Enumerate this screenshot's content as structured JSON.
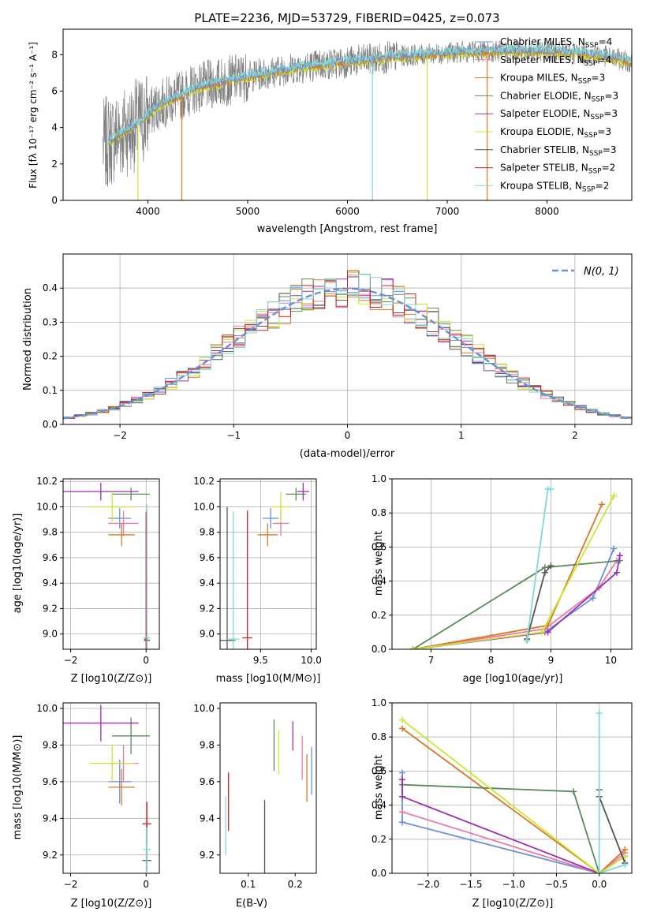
{
  "figure": {
    "title": "PLATE=2236, MJD=53729, FIBERID=0425, z=0.073",
    "colors": {
      "gray": "#808080",
      "darkgray": "#555555",
      "chabrier_miles": "#6a8fd8",
      "salpeter_miles": "#e879a8",
      "kroupa_miles": "#d8792a",
      "chabrier_elodie": "#5a8a5a",
      "salpeter_elodie": "#9a30b0",
      "kroupa_elodie": "#c8e830",
      "chabrier_stelib": "#555555",
      "salpeter_stelib": "#cc2020",
      "kroupa_stelib": "#80d8d8"
    }
  },
  "chart_data": [
    {
      "id": "spectrum",
      "type": "line",
      "title": "PLATE=2236, MJD=53729, FIBERID=0425, z=0.073",
      "xlabel": "wavelength [Angstrom, rest frame]",
      "ylabel": "Flux [fλ 10⁻¹⁷ erg cm⁻² s⁻¹ A⁻¹]",
      "xlim": [
        3150,
        8850
      ],
      "ylim": [
        0,
        9.4
      ],
      "xticks": [
        4000,
        5000,
        6000,
        7000,
        8000
      ],
      "yticks": [
        0,
        2,
        4,
        6,
        8
      ],
      "grid": false,
      "legend_position": "right",
      "data_envelope": {
        "x": [
          3550,
          3700,
          3900,
          4100,
          4500,
          5000,
          5500,
          6000,
          6500,
          7000,
          7500,
          8000,
          8500,
          8850
        ],
        "y": [
          3.0,
          3.6,
          4.2,
          5.2,
          6.2,
          6.8,
          7.3,
          7.6,
          7.9,
          8.1,
          8.2,
          8.2,
          8.0,
          7.6
        ]
      },
      "spikes": [
        {
          "x": 3900,
          "y": 0
        },
        {
          "x": 4340,
          "y": 0
        },
        {
          "x": 6250,
          "y": 0
        },
        {
          "x": 6800,
          "y": 0
        },
        {
          "x": 7400,
          "y": 0
        }
      ],
      "legend": [
        {
          "label": "Chabrier MILES, N",
          "sub": "SSP",
          "eq": "=4"
        },
        {
          "label": "Salpeter MILES, N",
          "sub": "SSP",
          "eq": "=4"
        },
        {
          "label": "Kroupa MILES, N",
          "sub": "SSP",
          "eq": "=3"
        },
        {
          "label": "Chabrier ELODIE, N",
          "sub": "SSP",
          "eq": "=3"
        },
        {
          "label": "Salpeter ELODIE, N",
          "sub": "SSP",
          "eq": "=3"
        },
        {
          "label": "Kroupa ELODIE, N",
          "sub": "SSP",
          "eq": "=3"
        },
        {
          "label": "Chabrier STELIB, N",
          "sub": "SSP",
          "eq": "=3"
        },
        {
          "label": "Salpeter STELIB, N",
          "sub": "SSP",
          "eq": "=2"
        },
        {
          "label": "Kroupa STELIB, N",
          "sub": "SSP",
          "eq": "=2"
        }
      ]
    },
    {
      "id": "residuals",
      "type": "line",
      "xlabel": "(data-model)/error",
      "ylabel": "Normed distribution",
      "xlim": [
        -2.5,
        2.5
      ],
      "ylim": [
        0,
        0.5
      ],
      "xticks": [
        -2,
        -1,
        0,
        1,
        2
      ],
      "xtick_labels": [
        "−2",
        "−1",
        "0",
        "1",
        "2"
      ],
      "yticks": [
        0,
        0.1,
        0.2,
        0.3,
        0.4
      ],
      "ytick_labels": [
        "0.0",
        "0.1",
        "0.2",
        "0.3",
        "0.4"
      ],
      "grid": true,
      "legend_position": "top-right",
      "legend_label": "N(0, 1)",
      "gaussian": {
        "mean": 0,
        "sigma": 1
      }
    },
    {
      "id": "age_vs_z",
      "type": "scatter",
      "xlabel": "Z [log10(Z/Z⊙)]",
      "ylabel": "age  [log10(age/yr)]",
      "xlim": [
        -2.2,
        0.35
      ],
      "ylim": [
        8.88,
        10.22
      ],
      "xticks": [
        -2,
        0
      ],
      "xtick_labels": [
        "−2",
        "0"
      ],
      "yticks": [
        9.0,
        9.2,
        9.4,
        9.6,
        9.8,
        10.0,
        10.2
      ],
      "ytick_labels": [
        "9.0",
        "9.2",
        "9.4",
        "9.6",
        "9.8",
        "10.0",
        "10.2"
      ],
      "grid": true,
      "points": [
        {
          "series": "Chabrier MILES",
          "x": -0.7,
          "xerr": 0.3,
          "y": 9.91,
          "yerr": 0.08
        },
        {
          "series": "Salpeter MILES",
          "x": -0.6,
          "xerr": 0.4,
          "y": 9.87,
          "yerr": 0.1
        },
        {
          "series": "Kroupa MILES",
          "x": -0.65,
          "xerr": 0.35,
          "y": 9.78,
          "yerr": 0.09
        },
        {
          "series": "Chabrier ELODIE",
          "x": -0.4,
          "xerr": 0.5,
          "y": 10.1,
          "yerr": 0.05
        },
        {
          "series": "Salpeter ELODIE",
          "x": -1.2,
          "xerr": 1.0,
          "y": 10.12,
          "yerr": 0.07
        },
        {
          "series": "Kroupa ELODIE",
          "x": -0.9,
          "xerr": 0.6,
          "y": 10.0,
          "yerr": 0.12
        },
        {
          "series": "Chabrier STELIB",
          "x": 0.02,
          "xerr": 0.08,
          "y": 8.95,
          "yerr": 0.06
        },
        {
          "series": "Salpeter STELIB",
          "x": 0.0,
          "xerr": 0.05,
          "y": 8.96,
          "yerr": 1.0
        },
        {
          "series": "Kroupa STELIB",
          "x": 0.02,
          "xerr": 0.1,
          "y": 8.97,
          "yerr": 1.05
        }
      ]
    },
    {
      "id": "age_vs_mass",
      "type": "scatter",
      "xlabel": "mass [log10(M/M⊙)]",
      "xlim": [
        9.1,
        10.05
      ],
      "ylim": [
        8.88,
        10.22
      ],
      "xticks": [
        9.5,
        10.0
      ],
      "xtick_labels": [
        "9.5",
        "10.0"
      ],
      "yticks": [
        9.0,
        9.2,
        9.4,
        9.6,
        9.8,
        10.0,
        10.2
      ],
      "ytick_labels": [
        "9.0",
        "9.2",
        "9.4",
        "9.6",
        "9.8",
        "10.0",
        "10.2"
      ],
      "grid": true,
      "points": [
        {
          "series": "Chabrier MILES",
          "x": 9.6,
          "xerr": 0.08,
          "y": 9.91,
          "yerr": 0.08
        },
        {
          "series": "Salpeter MILES",
          "x": 9.7,
          "xerr": 0.08,
          "y": 9.87,
          "yerr": 0.1
        },
        {
          "series": "Kroupa MILES",
          "x": 9.57,
          "xerr": 0.1,
          "y": 9.78,
          "yerr": 0.09
        },
        {
          "series": "Chabrier ELODIE",
          "x": 9.85,
          "xerr": 0.1,
          "y": 10.1,
          "yerr": 0.05
        },
        {
          "series": "Salpeter ELODIE",
          "x": 9.92,
          "xerr": 0.06,
          "y": 10.12,
          "yerr": 0.07
        },
        {
          "series": "Kroupa ELODIE",
          "x": 9.7,
          "xerr": 0.1,
          "y": 10.0,
          "yerr": 0.12
        },
        {
          "series": "Chabrier STELIB",
          "x": 9.17,
          "xerr": 0.08,
          "y": 8.95,
          "yerr": 1.05
        },
        {
          "series": "Salpeter STELIB",
          "x": 9.37,
          "xerr": 0.05,
          "y": 8.97,
          "yerr": 1.0
        },
        {
          "series": "Kroupa STELIB",
          "x": 9.23,
          "xerr": 0.06,
          "y": 8.96,
          "yerr": 1.0
        }
      ]
    },
    {
      "id": "massweight_vs_age",
      "type": "line",
      "xlabel": "age  [log10(age/yr)]",
      "ylabel": "mass weight",
      "xlim": [
        6.35,
        10.35
      ],
      "ylim": [
        0,
        1.0
      ],
      "xticks": [
        7,
        8,
        9,
        10
      ],
      "xtick_labels": [
        "7",
        "8",
        "9",
        "10"
      ],
      "yticks": [
        0,
        0.2,
        0.4,
        0.6,
        0.8,
        1.0
      ],
      "ytick_labels": [
        "0.0",
        "0.2",
        "0.4",
        "0.6",
        "0.8",
        "1.0"
      ],
      "grid": true,
      "series": [
        {
          "name": "Chabrier MILES",
          "x": [
            6.7,
            8.9,
            9.7,
            10.05
          ],
          "y": [
            0.0,
            0.1,
            0.3,
            0.59
          ]
        },
        {
          "name": "Salpeter MILES",
          "x": [
            6.7,
            8.9,
            9.8,
            10.1
          ],
          "y": [
            0.0,
            0.12,
            0.36,
            0.52
          ]
        },
        {
          "name": "Kroupa MILES",
          "x": [
            6.7,
            8.95,
            9.85
          ],
          "y": [
            0.0,
            0.14,
            0.85
          ]
        },
        {
          "name": "Chabrier ELODIE",
          "x": [
            6.7,
            8.9,
            10.15
          ],
          "y": [
            0.0,
            0.48,
            0.52
          ]
        },
        {
          "name": "Salpeter ELODIE",
          "x": [
            6.7,
            8.95,
            10.1,
            10.15
          ],
          "y": [
            0.0,
            0.1,
            0.45,
            0.55
          ]
        },
        {
          "name": "Kroupa ELODIE",
          "x": [
            6.7,
            8.85,
            10.05
          ],
          "y": [
            0.0,
            0.1,
            0.9
          ]
        },
        {
          "name": "Chabrier STELIB",
          "x": [
            8.6,
            8.9,
            9.0
          ],
          "y": [
            0.06,
            0.45,
            0.49
          ]
        },
        {
          "name": "Kroupa STELIB",
          "x": [
            8.6,
            8.95,
            9.0
          ],
          "y": [
            0.05,
            0.94,
            0.94
          ]
        }
      ]
    },
    {
      "id": "mass_vs_z",
      "type": "scatter",
      "xlabel": "Z [log10(Z/Z⊙)]",
      "ylabel": "mass [log10(M/M⊙)]",
      "xlim": [
        -2.2,
        0.35
      ],
      "ylim": [
        9.1,
        10.03
      ],
      "xticks": [
        -2,
        0
      ],
      "xtick_labels": [
        "−2",
        "0"
      ],
      "yticks": [
        9.2,
        9.4,
        9.6,
        9.8,
        10.0
      ],
      "ytick_labels": [
        "9.2",
        "9.4",
        "9.6",
        "9.8",
        "10.0"
      ],
      "grid": true,
      "points": [
        {
          "series": "Chabrier MILES",
          "x": -0.7,
          "xerr": 0.3,
          "y": 9.6,
          "yerr": 0.12
        },
        {
          "series": "Salpeter MILES",
          "x": -0.6,
          "xerr": 0.4,
          "y": 9.7,
          "yerr": 0.1
        },
        {
          "series": "Kroupa MILES",
          "x": -0.65,
          "xerr": 0.35,
          "y": 9.57,
          "yerr": 0.1
        },
        {
          "series": "Chabrier ELODIE",
          "x": -0.4,
          "xerr": 0.5,
          "y": 9.85,
          "yerr": 0.1
        },
        {
          "series": "Salpeter ELODIE",
          "x": -1.2,
          "xerr": 1.0,
          "y": 9.92,
          "yerr": 0.1
        },
        {
          "series": "Kroupa ELODIE",
          "x": -0.9,
          "xerr": 0.6,
          "y": 9.7,
          "yerr": 0.1
        },
        {
          "series": "Chabrier STELIB",
          "x": 0.02,
          "xerr": 0.12,
          "y": 9.17,
          "yerr": 0.06
        },
        {
          "series": "Salpeter STELIB",
          "x": 0.02,
          "xerr": 0.12,
          "y": 9.37,
          "yerr": 0.12
        },
        {
          "series": "Kroupa STELIB",
          "x": 0.02,
          "xerr": 0.1,
          "y": 9.23,
          "yerr": 0.12
        }
      ]
    },
    {
      "id": "mass_vs_ebv",
      "type": "scatter",
      "xlabel": "E(B-V)",
      "xlim": [
        0.04,
        0.245
      ],
      "ylim": [
        9.1,
        10.03
      ],
      "xticks": [
        0.1,
        0.2
      ],
      "xtick_labels": [
        "0.1",
        "0.2"
      ],
      "yticks": [
        9.2,
        9.4,
        9.6,
        9.8,
        10.0
      ],
      "ytick_labels": [
        "9.2",
        "9.4",
        "9.6",
        "9.8",
        "10.0"
      ],
      "grid": false,
      "points": [
        {
          "series": "Chabrier MILES",
          "x": 0.235,
          "y": 9.66,
          "yerr": 0.13
        },
        {
          "series": "Salpeter MILES",
          "x": 0.215,
          "y": 9.73,
          "yerr": 0.12
        },
        {
          "series": "Kroupa MILES",
          "x": 0.225,
          "y": 9.62,
          "yerr": 0.13
        },
        {
          "series": "Chabrier ELODIE",
          "x": 0.155,
          "y": 9.8,
          "yerr": 0.14
        },
        {
          "series": "Salpeter ELODIE",
          "x": 0.195,
          "y": 9.85,
          "yerr": 0.08
        },
        {
          "series": "Kroupa ELODIE",
          "x": 0.165,
          "y": 9.76,
          "yerr": 0.12
        },
        {
          "series": "Chabrier STELIB",
          "x": 0.135,
          "y": 9.26,
          "yerr": 0.24
        },
        {
          "series": "Salpeter STELIB",
          "x": 0.058,
          "y": 9.49,
          "yerr": 0.16
        },
        {
          "series": "Kroupa STELIB",
          "x": 0.052,
          "y": 9.36,
          "yerr": 0.16
        }
      ]
    },
    {
      "id": "massweight_vs_z",
      "type": "line",
      "xlabel": "Z [log10(Z/Z⊙)]",
      "ylabel": "mass weight",
      "xlim": [
        -2.42,
        0.38
      ],
      "ylim": [
        0,
        1.0
      ],
      "xticks": [
        -2.0,
        -1.5,
        -1.0,
        -0.5,
        0.0
      ],
      "xtick_labels": [
        "−2.0",
        "−1.5",
        "−1.0",
        "−0.5",
        "0.0"
      ],
      "yticks": [
        0,
        0.2,
        0.4,
        0.6,
        0.8,
        1.0
      ],
      "ytick_labels": [
        "0.0",
        "0.2",
        "0.4",
        "0.6",
        "0.8",
        "1.0"
      ],
      "grid": true,
      "series": [
        {
          "name": "Chabrier MILES",
          "x": [
            -2.3,
            -2.3,
            0.0,
            0.3
          ],
          "y": [
            0.59,
            0.3,
            0.0,
            0.1
          ]
        },
        {
          "name": "Salpeter MILES",
          "x": [
            -2.3,
            0.0,
            0.3
          ],
          "y": [
            0.36,
            0.0,
            0.12
          ]
        },
        {
          "name": "Kroupa MILES",
          "x": [
            -2.3,
            0.0,
            0.3
          ],
          "y": [
            0.85,
            0.0,
            0.14
          ]
        },
        {
          "name": "Chabrier ELODIE",
          "x": [
            -2.3,
            -0.3,
            0.0
          ],
          "y": [
            0.52,
            0.48,
            0.0
          ]
        },
        {
          "name": "Salpeter ELODIE",
          "x": [
            -2.3,
            -2.3,
            0.0,
            0.3
          ],
          "y": [
            0.55,
            0.45,
            0.0,
            0.1
          ]
        },
        {
          "name": "Kroupa ELODIE",
          "x": [
            -2.3,
            0.0,
            0.3
          ],
          "y": [
            0.9,
            0.0,
            0.1
          ]
        },
        {
          "name": "Chabrier STELIB",
          "x": [
            0.0,
            0.0,
            0.3
          ],
          "y": [
            0.49,
            0.45,
            0.06
          ]
        },
        {
          "name": "Kroupa STELIB",
          "x": [
            0.0,
            0.0,
            0.3
          ],
          "y": [
            0.94,
            0.0,
            0.05
          ]
        }
      ]
    }
  ]
}
